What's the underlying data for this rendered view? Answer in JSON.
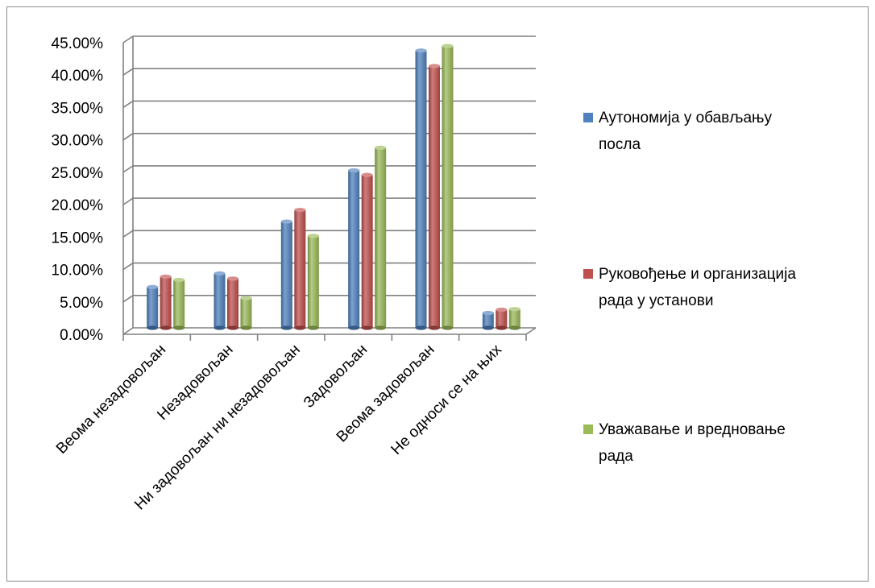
{
  "chart_data": {
    "type": "bar",
    "categories": [
      "Веома незадовољан",
      "Незадовољан",
      "Ни задовољан ни незадовољан",
      "Задовољан",
      "Веома задовољан",
      "Не односи се на њих"
    ],
    "series": [
      {
        "name": "Аутономија у обављању посла",
        "color": "#4f81bd",
        "values": [
          6.3,
          8.4,
          16.4,
          24.3,
          42.8,
          2.3
        ]
      },
      {
        "name": "Руковођење и организација рада у установи",
        "color": "#c0504d",
        "values": [
          7.9,
          7.6,
          18.2,
          23.6,
          40.4,
          2.8
        ]
      },
      {
        "name": "Уважавање и вредновање рада",
        "color": "#9bbb59",
        "values": [
          7.4,
          4.6,
          14.2,
          27.8,
          43.5,
          2.9
        ]
      }
    ],
    "legend_lines": [
      [
        "Аутономија у обављању",
        "посла"
      ],
      [
        "Руковођење и организација",
        "рада у установи"
      ],
      [
        "Уважавање и вредновање",
        "рада"
      ]
    ],
    "y_ticks": [
      "0.00%",
      "5.00%",
      "10.00%",
      "15.00%",
      "20.00%",
      "25.00%",
      "30.00%",
      "35.00%",
      "40.00%",
      "45.00%"
    ],
    "ylim": [
      0,
      45
    ],
    "grid": true,
    "legend_position": "right",
    "title": "",
    "xlabel": "",
    "ylabel": ""
  }
}
